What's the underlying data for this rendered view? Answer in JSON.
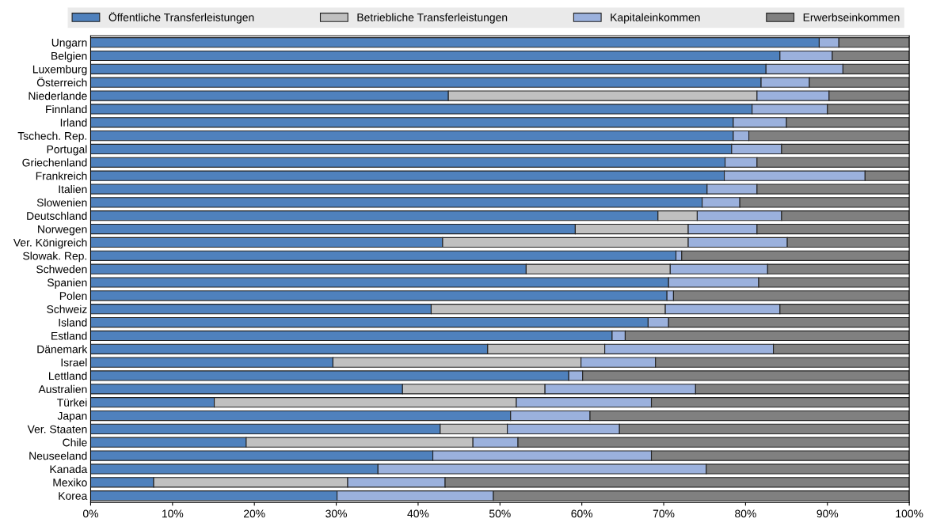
{
  "chart_data": {
    "type": "bar",
    "orientation": "horizontal",
    "stacked": true,
    "legend": "top",
    "grid": false,
    "categories": [
      "Ungarn",
      "Belgien",
      "Luxemburg",
      "Österreich",
      "Niederlande",
      "Finnland",
      "Irland",
      "Tschech. Rep.",
      "Portugal",
      "Griechenland",
      "Frankreich",
      "Italien",
      "Slowenien",
      "Deutschland",
      "Norwegen",
      "Ver. Königreich",
      "Slowak. Rep.",
      "Schweden",
      "Spanien",
      "Polen",
      "Schweiz",
      "Island",
      "Estland",
      "Dänemark",
      "Israel",
      "Lettland",
      "Australien",
      "Türkei",
      "Japan",
      "Ver. Staaten",
      "Chile",
      "Neuseeland",
      "Kanada",
      "Mexiko",
      "Korea"
    ],
    "series": [
      {
        "name": "Öffentliche Transferleistungen",
        "color": "#4f81bd",
        "values": [
          89.0,
          84.2,
          82.5,
          81.9,
          43.7,
          80.8,
          78.5,
          78.5,
          78.3,
          77.5,
          77.4,
          75.3,
          74.7,
          69.3,
          59.2,
          43.0,
          71.5,
          53.2,
          70.6,
          70.4,
          41.6,
          68.1,
          63.7,
          48.5,
          29.6,
          58.4,
          38.1,
          15.1,
          51.3,
          42.7,
          19.0,
          41.8,
          35.1,
          7.7,
          30.1
        ]
      },
      {
        "name": "Betriebliche Transferleistungen",
        "color": "#c0c0c0",
        "values": [
          0,
          0,
          0,
          0,
          37.7,
          0,
          0,
          0,
          0,
          0,
          0,
          0,
          0,
          4.8,
          13.8,
          30.0,
          0,
          17.6,
          0,
          0,
          28.6,
          0,
          0,
          14.3,
          30.3,
          0,
          17.4,
          36.9,
          0,
          8.2,
          27.7,
          0,
          0,
          23.7,
          0
        ]
      },
      {
        "name": "Kapitaleinkommen",
        "color": "#9bb1dd",
        "values": [
          2.4,
          6.4,
          9.4,
          5.9,
          8.8,
          9.2,
          6.5,
          1.9,
          6.1,
          3.9,
          17.2,
          6.1,
          4.6,
          10.3,
          8.4,
          12.1,
          0.7,
          11.9,
          11.0,
          0.8,
          14.0,
          2.5,
          1.6,
          20.6,
          9.1,
          1.7,
          18.4,
          16.5,
          9.7,
          13.7,
          5.5,
          26.7,
          40.1,
          11.9,
          19.1
        ]
      },
      {
        "name": "Erwerbseinkommen",
        "color": "#808080",
        "values": [
          8.6,
          9.4,
          8.1,
          12.2,
          9.8,
          10.0,
          15.0,
          19.6,
          15.6,
          18.6,
          5.4,
          18.6,
          20.7,
          15.6,
          18.6,
          14.9,
          27.8,
          17.3,
          18.4,
          28.8,
          15.8,
          29.4,
          34.7,
          16.6,
          31.0,
          39.9,
          26.1,
          31.5,
          39.0,
          35.4,
          47.8,
          31.5,
          24.8,
          56.7,
          50.8
        ]
      }
    ],
    "xlim": [
      0,
      100
    ],
    "xticks": [
      {
        "value": 0,
        "label": "0%"
      },
      {
        "value": 10,
        "label": "10%"
      },
      {
        "value": 20,
        "label": "20%"
      },
      {
        "value": 30,
        "label": "30%"
      },
      {
        "value": 40,
        "label": "40%"
      },
      {
        "value": 50,
        "label": "50%"
      },
      {
        "value": 60,
        "label": "60%"
      },
      {
        "value": 70,
        "label": "70%"
      },
      {
        "value": 80,
        "label": "80%"
      },
      {
        "value": 90,
        "label": "90%"
      },
      {
        "value": 100,
        "label": "100%"
      }
    ]
  }
}
